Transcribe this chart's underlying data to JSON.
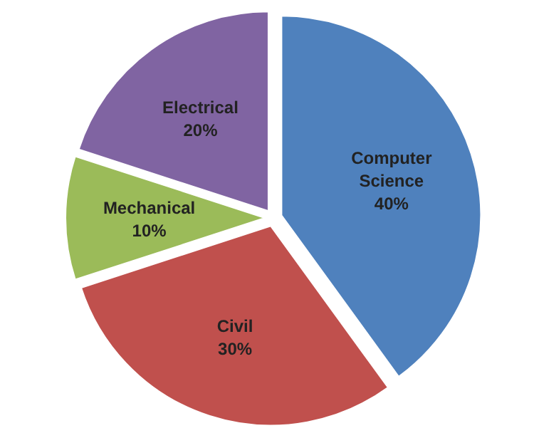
{
  "chart_data": {
    "type": "pie",
    "categories": [
      "Computer Science",
      "Civil",
      "Mechanical",
      "Electrical"
    ],
    "values": [
      40,
      30,
      10,
      20
    ],
    "value_labels": [
      "40%",
      "30%",
      "10%",
      "20%"
    ],
    "colors": [
      "#4f81bd",
      "#c0504d",
      "#9bbb59",
      "#8064a2"
    ]
  }
}
